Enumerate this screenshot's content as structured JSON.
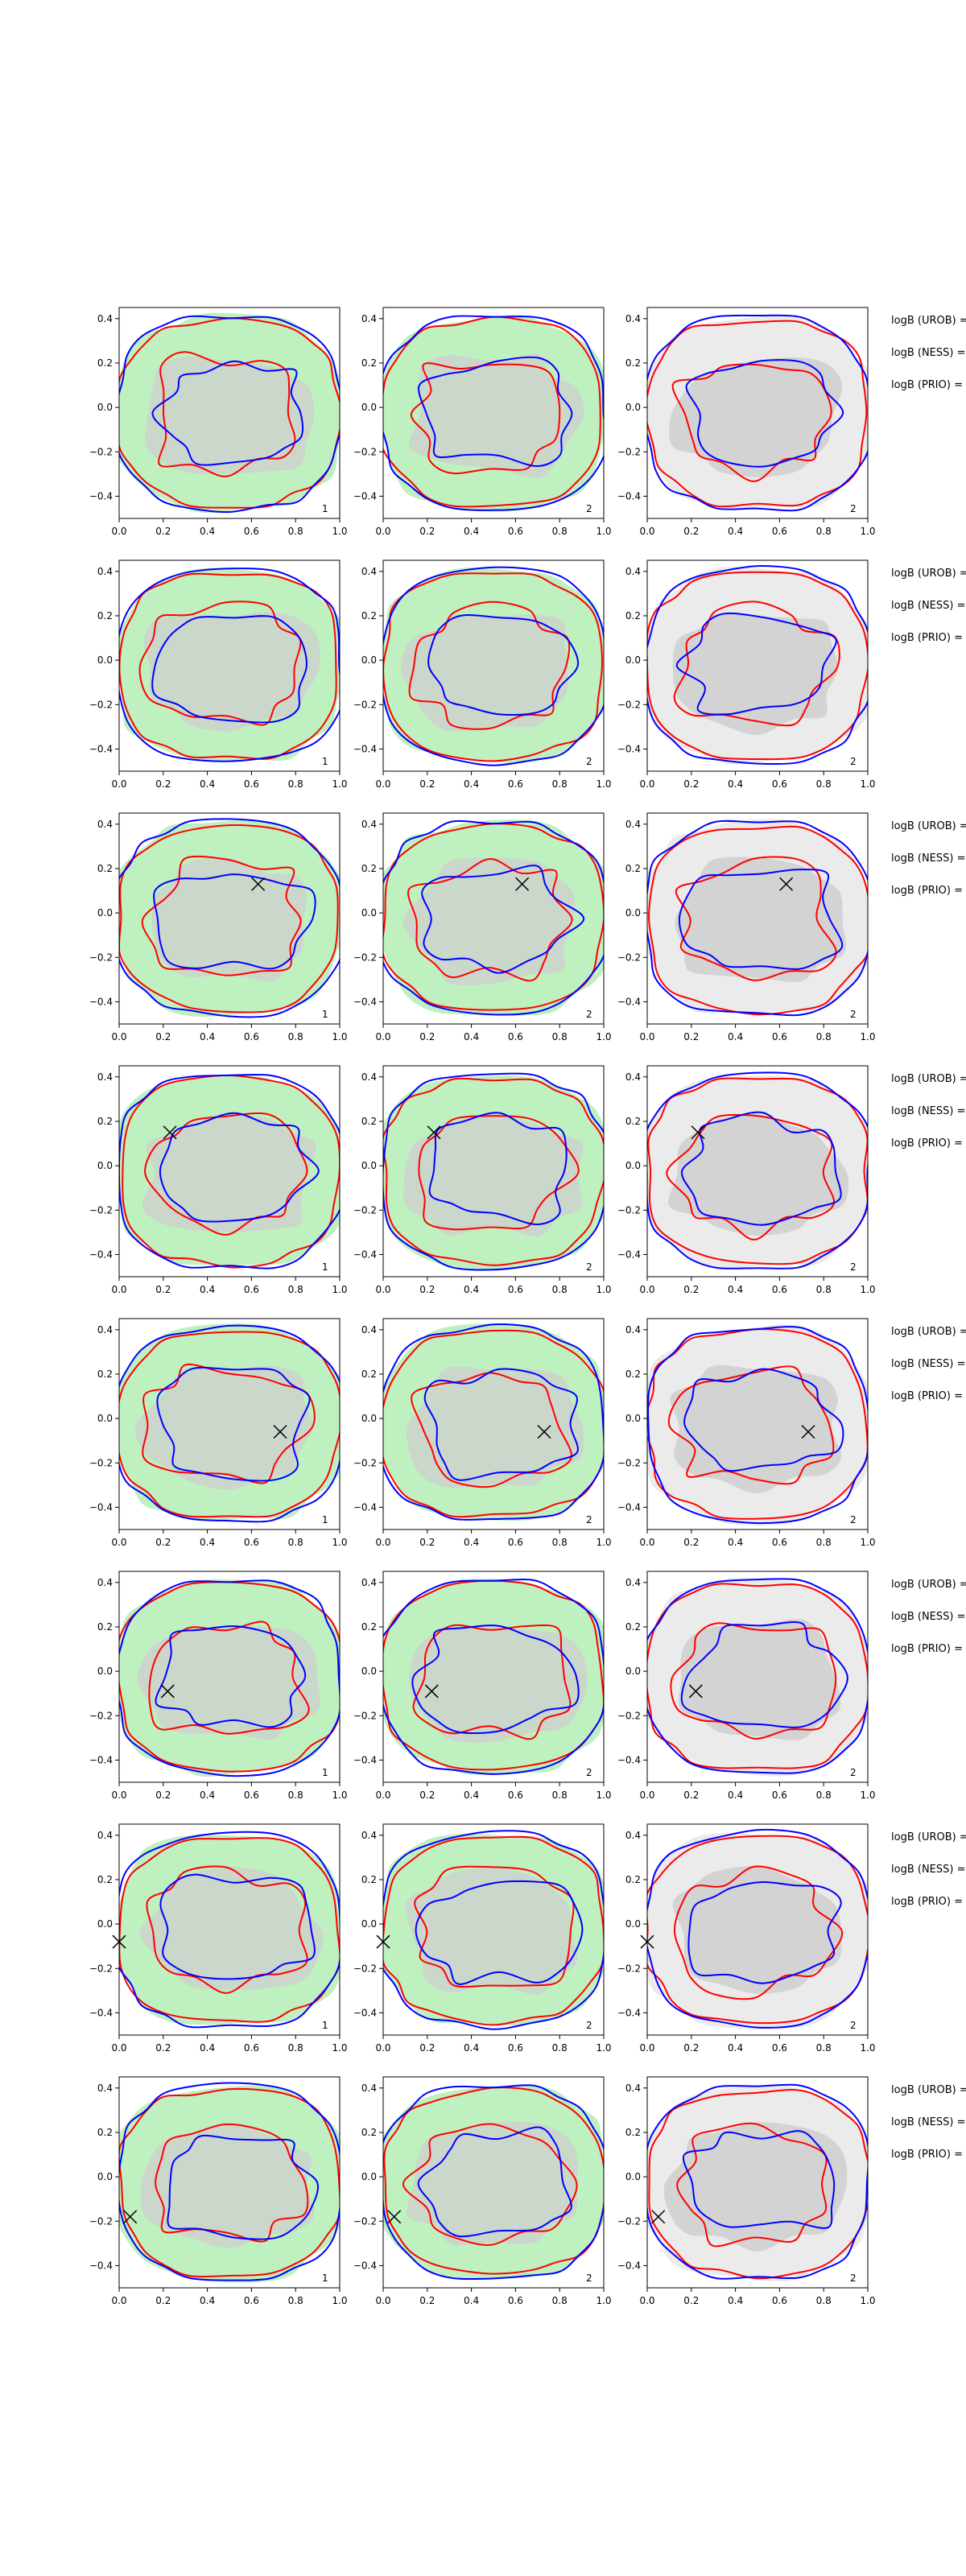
{
  "figure": {
    "rows": 8,
    "cols": 3
  },
  "colors": {
    "fill_green": "#bff0bf",
    "fill_green_inner": "#cfcfcf",
    "fill_gray_outer": "#ebebeb",
    "fill_gray_inner": "#d3d3d3",
    "contour_red": "#ff0000",
    "contour_blue": "#0000ff",
    "axis": "#000000"
  },
  "chart_data": {
    "type": "contour",
    "xlim": [
      0,
      1
    ],
    "ylim": [
      -0.5,
      0.45
    ],
    "x_ticks": [
      "0.0",
      "0.2",
      "0.4",
      "0.6",
      "0.8",
      "1.0"
    ],
    "x_tick_values": [
      0,
      0.2,
      0.4,
      0.6,
      0.8,
      1.0
    ],
    "y_ticks": [
      "0.4",
      "0.2",
      "0.0",
      "−0.2",
      "−0.4"
    ],
    "y_tick_values": [
      0.4,
      0.2,
      0.0,
      -0.2,
      -0.4
    ],
    "column_labels": [
      "1",
      "2",
      "2"
    ],
    "side_labels": [
      "logB (UROB) =",
      "logB (NESS) =",
      "logB (PRIO) ="
    ],
    "series": [
      {
        "name": "red contours",
        "color": "#ff0000"
      },
      {
        "name": "blue contours",
        "color": "#0000ff"
      }
    ],
    "markers": [
      {
        "row": 0,
        "x": null,
        "y": null
      },
      {
        "row": 1,
        "x": null,
        "y": null
      },
      {
        "row": 2,
        "x": 0.63,
        "y": 0.13
      },
      {
        "row": 3,
        "x": 0.23,
        "y": 0.15
      },
      {
        "row": 4,
        "x": 0.73,
        "y": -0.06
      },
      {
        "row": 5,
        "x": 0.22,
        "y": -0.09
      },
      {
        "row": 6,
        "x": 0.0,
        "y": -0.08
      },
      {
        "row": 7,
        "x": 0.05,
        "y": -0.18
      }
    ]
  }
}
